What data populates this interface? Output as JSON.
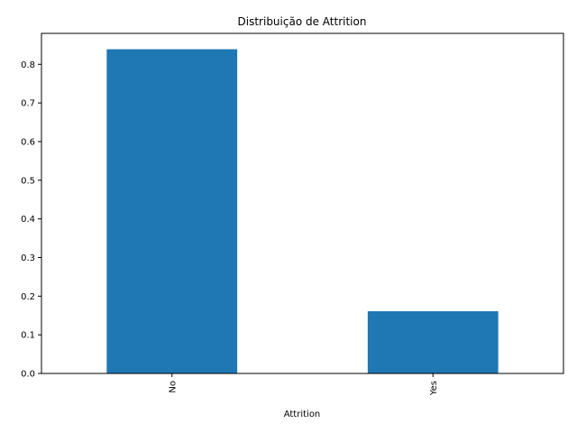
{
  "chart_data": {
    "type": "bar",
    "title": "Distribuição de Attrition",
    "xlabel": "Attrition",
    "ylabel": "",
    "categories": [
      "No",
      "Yes"
    ],
    "values": [
      0.839,
      0.161
    ],
    "ylim": [
      0,
      0.88
    ],
    "yticks": [
      "0.0",
      "0.1",
      "0.2",
      "0.3",
      "0.4",
      "0.5",
      "0.6",
      "0.7",
      "0.8"
    ],
    "grid": false,
    "legend": "none",
    "bar_color": "#1f77b4",
    "x_tick_rotation_deg": 90
  }
}
